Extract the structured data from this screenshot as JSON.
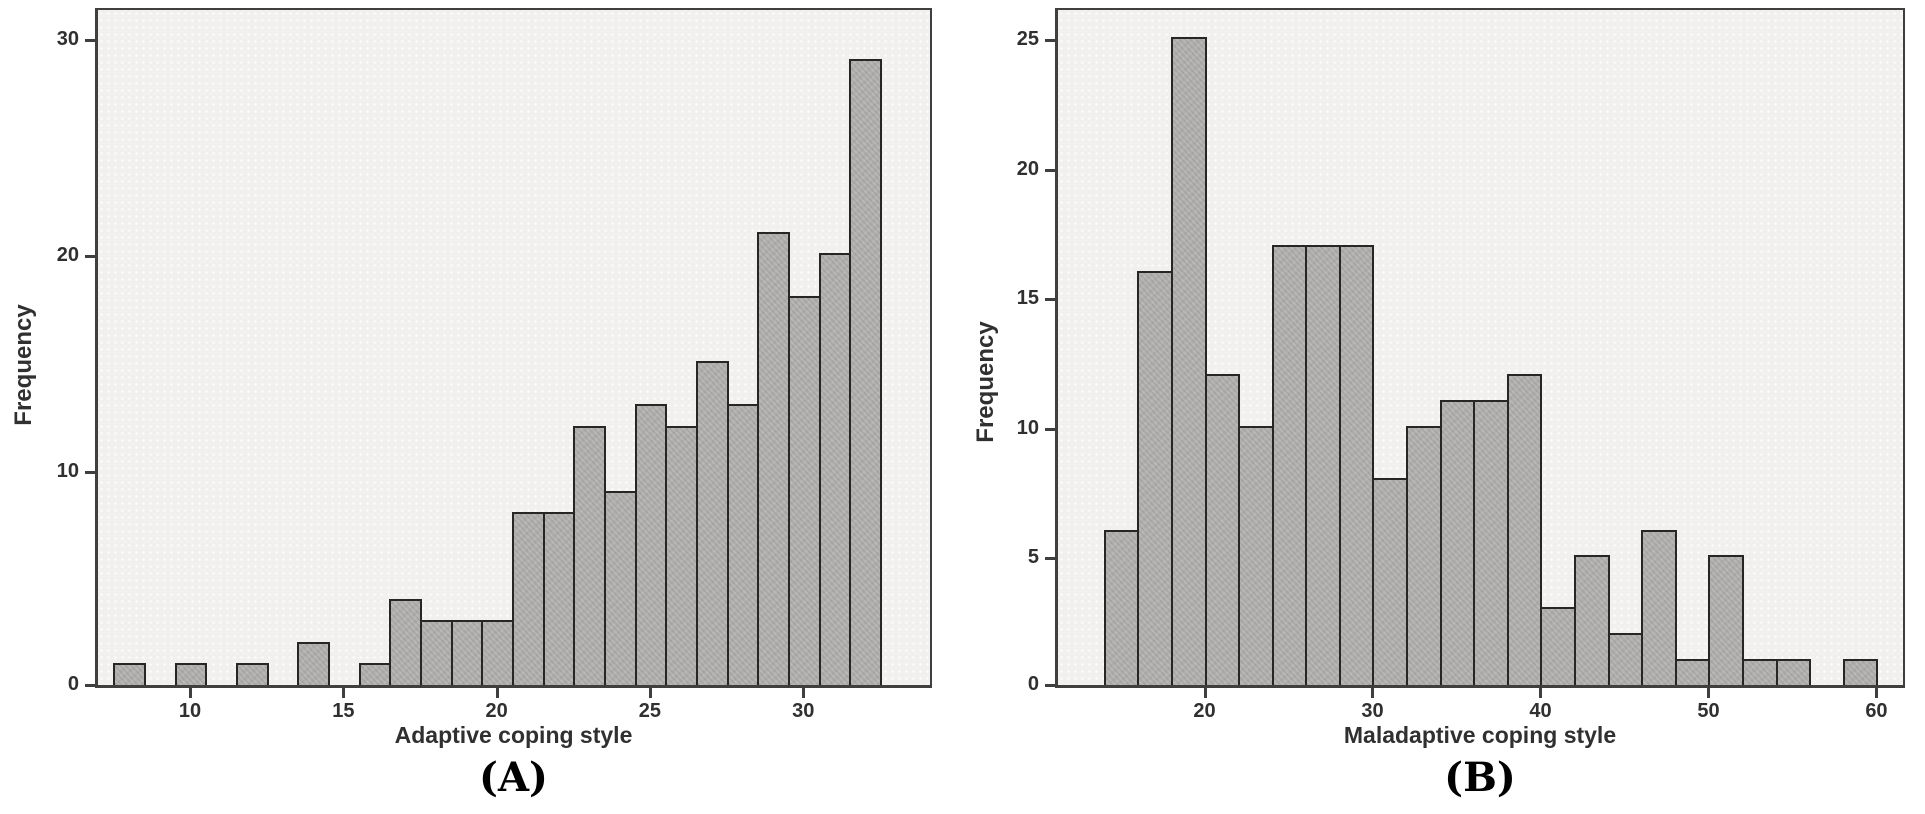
{
  "figure": {
    "background": "#ffffff",
    "colors": {
      "bar_fill": "#b6b4b2",
      "bar_border": "#262626",
      "plot_bg": "#f1f0ee",
      "frame_border": "#3f3f3f",
      "tick_color": "#3f3f3f",
      "text_color": "#303030"
    }
  },
  "chart_data": [
    {
      "type": "bar",
      "subtype": "histogram",
      "panel_label": "(A)",
      "title": "",
      "xlabel": "Adaptive coping style",
      "ylabel": "Frequency",
      "bin_width": 1,
      "bin_starts": [
        7.5,
        8.5,
        9.5,
        10.5,
        11.5,
        12.5,
        13.5,
        14.5,
        15.5,
        16.5,
        17.5,
        18.5,
        19.5,
        20.5,
        21.5,
        22.5,
        23.5,
        24.5,
        25.5,
        26.5,
        27.5,
        28.5,
        29.5,
        30.5,
        31.5
      ],
      "bin_centers": [
        8,
        9,
        10,
        11,
        12,
        13,
        14,
        15,
        16,
        17,
        18,
        19,
        20,
        21,
        22,
        23,
        24,
        25,
        26,
        27,
        28,
        29,
        30,
        31,
        32
      ],
      "values": [
        1,
        0,
        1,
        0,
        1,
        0,
        2,
        0,
        1,
        4,
        3,
        3,
        3,
        8,
        8,
        12,
        9,
        13,
        12,
        15,
        13,
        21,
        18,
        20,
        29
      ],
      "total_n": 197,
      "x_ticks": [
        10,
        15,
        20,
        25,
        30
      ],
      "y_ticks": [
        0,
        10,
        20,
        30
      ],
      "xlim": [
        6.9,
        34.2
      ],
      "ylim": [
        0,
        31.5
      ],
      "grid": false,
      "legend_position": "none"
    },
    {
      "type": "bar",
      "subtype": "histogram",
      "panel_label": "(B)",
      "title": "",
      "xlabel": "Maladaptive coping style",
      "ylabel": "Frequency",
      "bin_width": 2,
      "bin_starts": [
        14,
        16,
        18,
        20,
        22,
        24,
        26,
        28,
        30,
        32,
        34,
        36,
        38,
        40,
        42,
        44,
        46,
        48,
        50,
        52,
        54,
        56,
        58
      ],
      "values": [
        6,
        16,
        25,
        12,
        10,
        17,
        17,
        17,
        8,
        10,
        11,
        11,
        12,
        3,
        5,
        2,
        6,
        1,
        5,
        1,
        1,
        0,
        1
      ],
      "total_n": 197,
      "x_ticks": [
        20,
        30,
        40,
        50,
        60
      ],
      "y_ticks": [
        0,
        5,
        10,
        15,
        20,
        25
      ],
      "xlim": [
        11.1,
        61.7
      ],
      "ylim": [
        0,
        26.25
      ],
      "grid": false,
      "legend_position": "none"
    }
  ]
}
